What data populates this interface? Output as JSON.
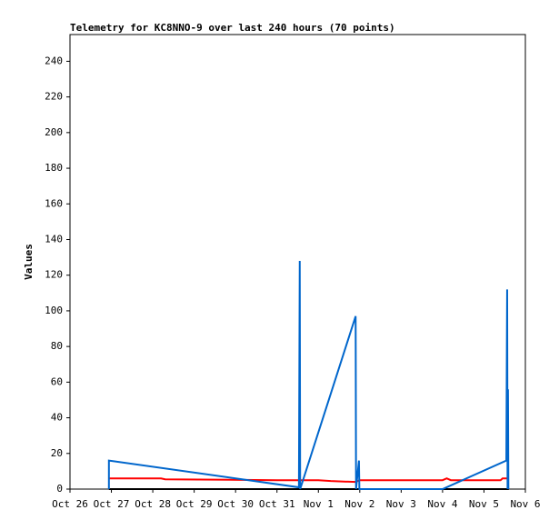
{
  "chart_data": {
    "type": "line",
    "title": "Telemetry for KC8NNO-9 over last 240 hours (70 points)",
    "y_label": "Values",
    "xlim": [
      0,
      11
    ],
    "xticks": [
      {
        "value": 0,
        "label": "Oct 26"
      },
      {
        "value": 1,
        "label": "Oct 27"
      },
      {
        "value": 2,
        "label": "Oct 28"
      },
      {
        "value": 3,
        "label": "Oct 29"
      },
      {
        "value": 4,
        "label": "Oct 30"
      },
      {
        "value": 5,
        "label": "Oct 31"
      },
      {
        "value": 6,
        "label": "Nov 1"
      },
      {
        "value": 7,
        "label": "Nov 2"
      },
      {
        "value": 8,
        "label": "Nov 3"
      },
      {
        "value": 9,
        "label": "Nov 4"
      },
      {
        "value": 10,
        "label": "Nov 5"
      },
      {
        "value": 11,
        "label": "Nov 6"
      }
    ],
    "ylim": [
      0,
      255
    ],
    "yticks": [
      0,
      20,
      40,
      60,
      80,
      100,
      120,
      140,
      160,
      180,
      200,
      220,
      240
    ],
    "series": [
      {
        "color": "#000000",
        "x": [
          0.94,
          10.6
        ],
        "values": [
          0,
          0
        ]
      },
      {
        "color": "#ff0000",
        "x": [
          0.94,
          2.2,
          2.3,
          5.0,
          6.0,
          6.3,
          6.9,
          7.0,
          9.0,
          9.1,
          9.2,
          10.4,
          10.45,
          10.6
        ],
        "values": [
          6,
          6,
          5.5,
          5,
          5,
          4.5,
          4,
          5,
          5,
          6,
          5,
          5,
          6,
          6
        ]
      },
      {
        "color": "#0066cc",
        "x": [
          0.94,
          0.94,
          5.53,
          5.55,
          5.56,
          6.9,
          6.91,
          6.98,
          6.99,
          9.0,
          10.54,
          10.56,
          10.57,
          10.58,
          10.59
        ],
        "values": [
          0,
          16,
          1,
          128,
          0,
          97,
          0,
          16,
          0,
          0,
          16,
          112,
          0,
          56,
          0
        ]
      }
    ]
  }
}
